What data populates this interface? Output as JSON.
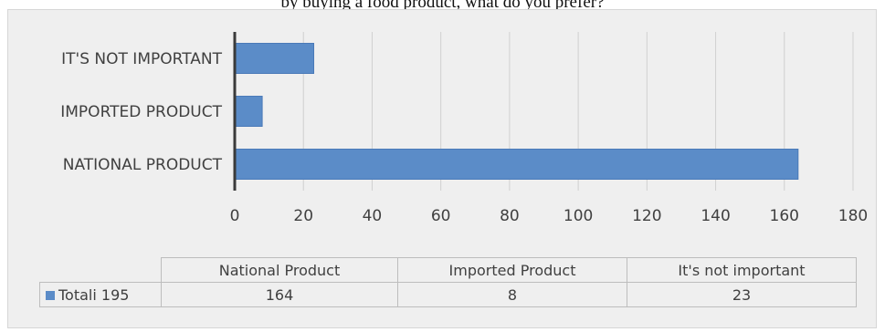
{
  "caption": "by buying a food product, what do you prefer?",
  "chart_data": {
    "type": "bar",
    "orientation": "horizontal",
    "categories": [
      "NATIONAL PRODUCT",
      "IMPORTED PRODUCT",
      "IT'S NOT IMPORTANT"
    ],
    "series": [
      {
        "name": "Totali 195",
        "values": [
          164,
          8,
          23
        ]
      }
    ],
    "xlim": [
      0,
      180
    ],
    "x_ticks": [
      "0",
      "20",
      "40",
      "60",
      "80",
      "100",
      "120",
      "140",
      "160",
      "180"
    ],
    "grid": true,
    "bar_color": "#5b8cc8",
    "background": "#efefef"
  },
  "table": {
    "headers": [
      "National Product",
      "Imported Product",
      "It's not important"
    ],
    "series_label": "Totali 195",
    "values": [
      "164",
      "8",
      "23"
    ]
  }
}
